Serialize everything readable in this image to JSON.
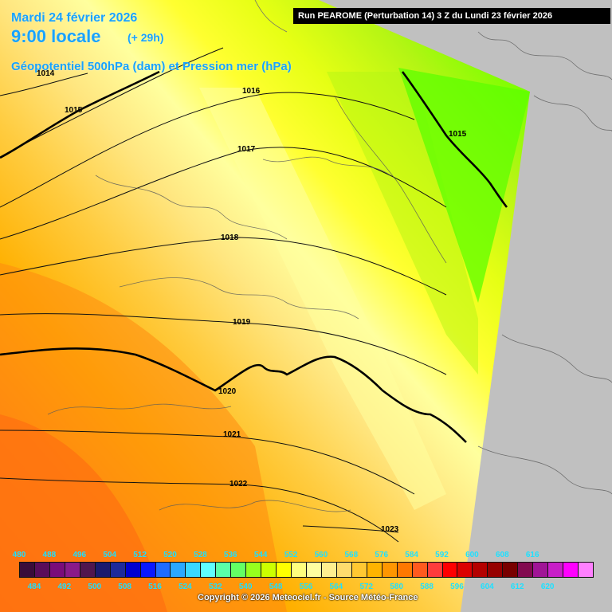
{
  "header": {
    "run": "Run PEAROME (Perturbation 14) 3 Z du Lundi 23 février 2026",
    "date": "Mardi 24 février 2026",
    "time": "9:00 locale",
    "lead": "(+ 29h)",
    "parameter": "Géopotentiel 500hPa (dam) et Pression mer (hPa)"
  },
  "isobar_labels": [
    "1014",
    "1015",
    "1016",
    "1017",
    "1018",
    "1019",
    "1020",
    "1021",
    "1022",
    "1023",
    "1015"
  ],
  "scale": {
    "top_labels": [
      "480",
      "488",
      "496",
      "504",
      "512",
      "520",
      "528",
      "536",
      "544",
      "552",
      "560",
      "568",
      "576",
      "584",
      "592",
      "600",
      "608",
      "616"
    ],
    "bottom_labels": [
      "484",
      "492",
      "500",
      "508",
      "516",
      "524",
      "532",
      "540",
      "548",
      "556",
      "564",
      "572",
      "580",
      "588",
      "596",
      "604",
      "612",
      "620"
    ],
    "colors": [
      "#3a0c3a",
      "#5a0c5a",
      "#7a0c7a",
      "#8a1a8a",
      "#50164e",
      "#1a1a6e",
      "#1e2a9a",
      "#0000d0",
      "#0a18ff",
      "#1f6cff",
      "#2aa8ff",
      "#38d8ff",
      "#60ffff",
      "#5affa8",
      "#64ff64",
      "#96ff1e",
      "#ccff00",
      "#ffff00",
      "#ffff7e",
      "#ffffa0",
      "#ffef90",
      "#ffdc6e",
      "#ffc832",
      "#ffb400",
      "#ff9600",
      "#ff7800",
      "#ff5a1e",
      "#ff3c3c",
      "#ff0000",
      "#dc0000",
      "#b40000",
      "#960000",
      "#780000",
      "#820a50",
      "#a01496",
      "#c81ec8",
      "#ff00ff",
      "#ff80ff"
    ]
  },
  "copyright": "Copyright © 2026 Meteociel.fr - Source Météo-France"
}
